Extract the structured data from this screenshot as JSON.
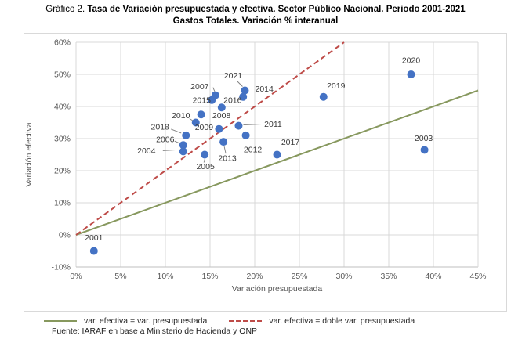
{
  "title": {
    "prefix": "Gráfico 2. ",
    "line1": "Tasa de Variación presupuestada y efectiva. Sector Público Nacional. Periodo 2001-2021",
    "line2": "Gastos Totales. Variación % interanual"
  },
  "chart_data": {
    "type": "scatter",
    "xlabel": "Variación presupuestada",
    "ylabel": "Variación efectiva",
    "xlim": [
      0,
      45
    ],
    "ylim": [
      -10,
      60
    ],
    "x_ticks": [
      0,
      5,
      10,
      15,
      20,
      25,
      30,
      35,
      40,
      45
    ],
    "x_tick_labels": [
      "0%",
      "5%",
      "10%",
      "15%",
      "20%",
      "25%",
      "30%",
      "35%",
      "40%",
      "45%"
    ],
    "y_ticks": [
      -10,
      0,
      10,
      20,
      30,
      40,
      50,
      60
    ],
    "y_tick_labels": [
      "-10%",
      "0%",
      "10%",
      "20%",
      "30%",
      "40%",
      "50%",
      "60%"
    ],
    "grid": true,
    "points": [
      {
        "label": "2001",
        "x": 2,
        "y": -5,
        "lp": [
          0,
          -17
        ]
      },
      {
        "label": "2003",
        "x": 39,
        "y": 26.5,
        "lp": [
          -1,
          -15
        ]
      },
      {
        "label": "2004",
        "x": 12,
        "y": 26,
        "lp": [
          -47,
          -1
        ],
        "leader": [
          -26,
          -1,
          -8,
          -2
        ]
      },
      {
        "label": "2005",
        "x": 14.4,
        "y": 25,
        "lp": [
          1,
          15
        ],
        "leader": [
          -1,
          10,
          0,
          6
        ]
      },
      {
        "label": "2006",
        "x": 12,
        "y": 28,
        "lp": [
          -23,
          -7
        ],
        "leader": [
          -11,
          -5,
          -4,
          -2
        ]
      },
      {
        "label": "2007",
        "x": 15.6,
        "y": 43.5,
        "lp": [
          -20,
          -11
        ],
        "leader": [
          -3,
          -10,
          -1,
          -5
        ]
      },
      {
        "label": "2008",
        "x": 14,
        "y": 37.5,
        "lp": [
          26,
          1
        ]
      },
      {
        "label": "2009",
        "x": 16,
        "y": 33,
        "lp": [
          -19,
          -2
        ]
      },
      {
        "label": "2010",
        "x": 13.4,
        "y": 35,
        "lp": [
          -19,
          -9
        ],
        "leader": [
          -8,
          -5,
          -3,
          -2
        ]
      },
      {
        "label": "2011",
        "x": 18.2,
        "y": 34,
        "lp": [
          44,
          -2
        ],
        "leader": [
          29,
          -2,
          6,
          -1
        ]
      },
      {
        "label": "2012",
        "x": 19,
        "y": 31,
        "lp": [
          9,
          18
        ]
      },
      {
        "label": "2013",
        "x": 16.5,
        "y": 29,
        "lp": [
          5,
          21
        ],
        "leader": [
          3,
          15,
          1,
          6
        ]
      },
      {
        "label": "2014",
        "x": 18.7,
        "y": 43,
        "lp": [
          27,
          -10
        ]
      },
      {
        "label": "2015",
        "x": 15.2,
        "y": 42,
        "lp": [
          -13,
          0
        ]
      },
      {
        "label": "2016",
        "x": 16.3,
        "y": 39.7,
        "lp": [
          14,
          -9
        ]
      },
      {
        "label": "2017",
        "x": 22.5,
        "y": 25,
        "lp": [
          17,
          -16
        ]
      },
      {
        "label": "2018",
        "x": 12.3,
        "y": 31,
        "lp": [
          -33,
          -11
        ],
        "leader": [
          -19,
          -8,
          -6,
          -3
        ]
      },
      {
        "label": "2019",
        "x": 27.7,
        "y": 43,
        "lp": [
          16,
          -14
        ]
      },
      {
        "label": "2020",
        "x": 37.5,
        "y": 50,
        "lp": [
          0,
          -18
        ]
      },
      {
        "label": "2021",
        "x": 18.9,
        "y": 45,
        "lp": [
          -15,
          -19
        ],
        "leader": [
          -10,
          -12,
          -3,
          -5
        ]
      }
    ],
    "ref_lines": [
      {
        "name": "var. efectiva = var. presupuestada",
        "from": [
          0,
          0
        ],
        "to": [
          45,
          45
        ],
        "style": "solid",
        "color": "#87985E"
      },
      {
        "name": "var. efectiva = doble var. presupuestada",
        "from": [
          0,
          0
        ],
        "to": [
          30,
          60
        ],
        "style": "dashed",
        "color": "#BE4B48"
      }
    ]
  },
  "legend": {
    "items": [
      {
        "label": "var. efectiva = var. presupuestada",
        "style": "solid",
        "color": "#87985E"
      },
      {
        "label": "var. efectiva = doble var. presupuestada",
        "style": "dashed",
        "color": "#BE4B48"
      }
    ]
  },
  "source": "Fuente: IARAF en base a Ministerio de Hacienda y ONP",
  "colors": {
    "point": "#4472C4",
    "grid": "#D9D9D9",
    "axis_line": "#BFBFBF",
    "tick_text": "#595959",
    "label_text": "#3A3A3A",
    "leader": "#7F7F7F"
  }
}
